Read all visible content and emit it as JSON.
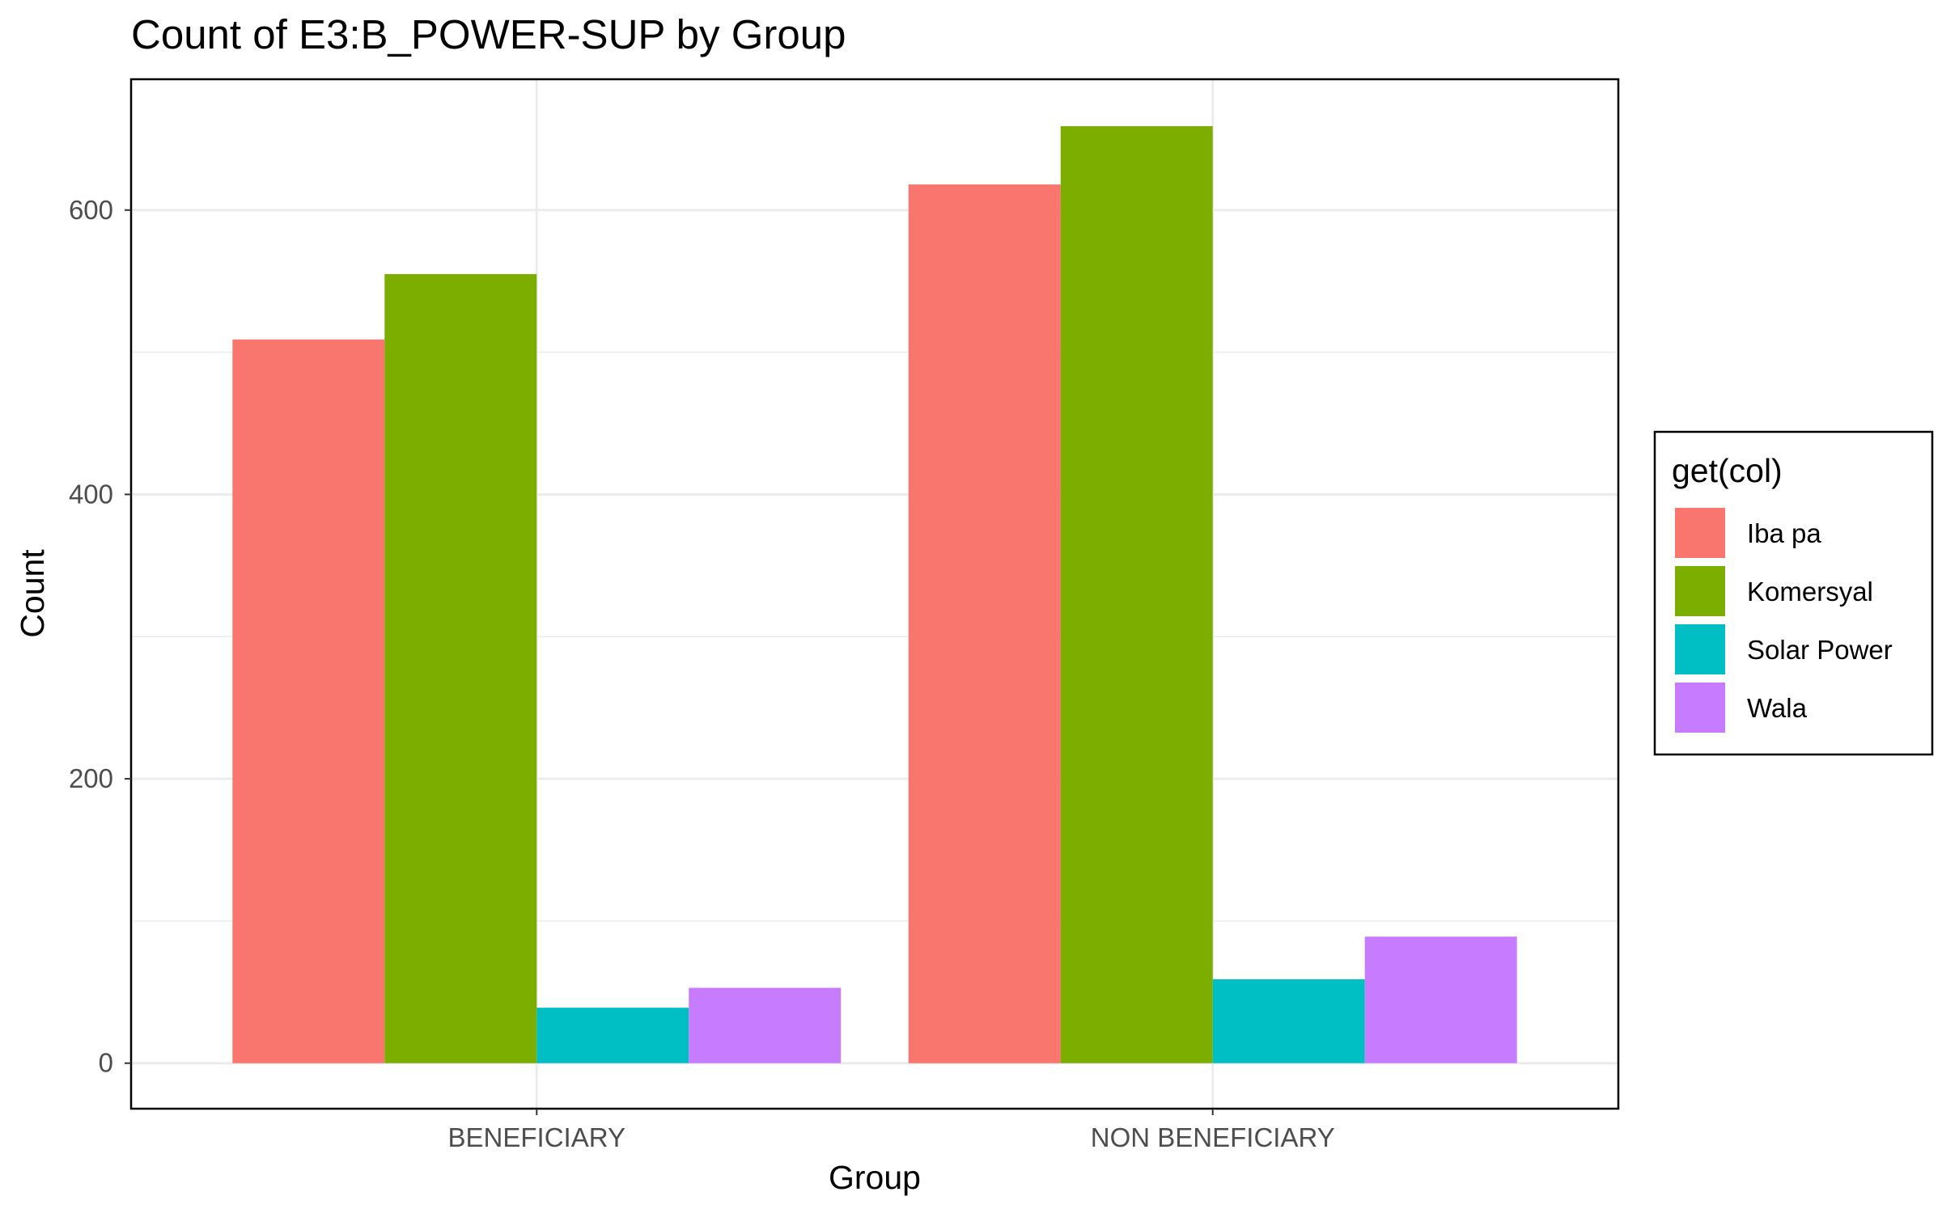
{
  "chart_data": {
    "type": "bar",
    "title": "Count of E3:B_POWER-SUP by Group",
    "xlabel": "Group",
    "ylabel": "Count",
    "categories": [
      "BENEFICIARY",
      "NON BENEFICIARY"
    ],
    "series": [
      {
        "name": "Iba pa",
        "color": "#F8766D",
        "values": [
          509,
          618
        ]
      },
      {
        "name": "Komersyal",
        "color": "#7CAE00",
        "values": [
          555,
          659
        ]
      },
      {
        "name": "Solar Power",
        "color": "#00BFC4",
        "values": [
          39,
          59
        ]
      },
      {
        "name": "Wala",
        "color": "#C77CFF",
        "values": [
          53,
          89
        ]
      }
    ],
    "ylim": [
      -32,
      692
    ],
    "yticks": [
      0,
      200,
      400,
      600
    ],
    "grid": true,
    "legend": {
      "title": "get(col)",
      "position": "right"
    }
  }
}
